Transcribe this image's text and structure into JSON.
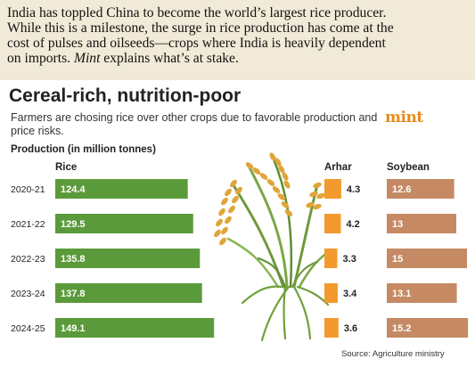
{
  "intro": {
    "lines": [
      "India has toppled China to become the world’s largest rice producer.",
      "While this is a milestone, the surge in rice production has come at the",
      "cost of pulses and oilseeds—crops where India is heavily dependent"
    ],
    "last_line_prefix": "on imports. ",
    "last_line_italic": "Mint",
    "last_line_suffix": " explains what’s at stake."
  },
  "title": "Cereal-rich, nutrition-poor",
  "subtitle": "Farmers are chosing rice over other crops due to favorable production and price risks.",
  "logo": "mint",
  "production_label": "Production (in million tonnes)",
  "source": "Source: Agriculture ministry",
  "colors": {
    "rice": "#5b9a3a",
    "arhar": "#f29a2e",
    "soybean": "#c58a64",
    "background": "#f2ead8"
  },
  "chart_data": {
    "type": "bar",
    "categories": [
      "2020-21",
      "2021-22",
      "2022-23",
      "2023-24",
      "2024-25"
    ],
    "series": [
      {
        "name": "Rice",
        "values": [
          124.4,
          129.5,
          135.8,
          137.8,
          149.1
        ]
      },
      {
        "name": "Arhar",
        "values": [
          4.3,
          4.2,
          3.3,
          3.4,
          3.6
        ]
      },
      {
        "name": "Soybean",
        "values": [
          12.6,
          13,
          15,
          13.1,
          15.2
        ]
      }
    ],
    "value_labels": {
      "Rice": [
        "124.4",
        "129.5",
        "135.8",
        "137.8",
        "149.1"
      ],
      "Arhar": [
        "4.3",
        "4.2",
        "3.3",
        "3.4",
        "3.6"
      ],
      "Soybean": [
        "12.6",
        "13",
        "15",
        "13.1",
        "15.2"
      ]
    },
    "orientation": "horizontal",
    "grid": false
  }
}
